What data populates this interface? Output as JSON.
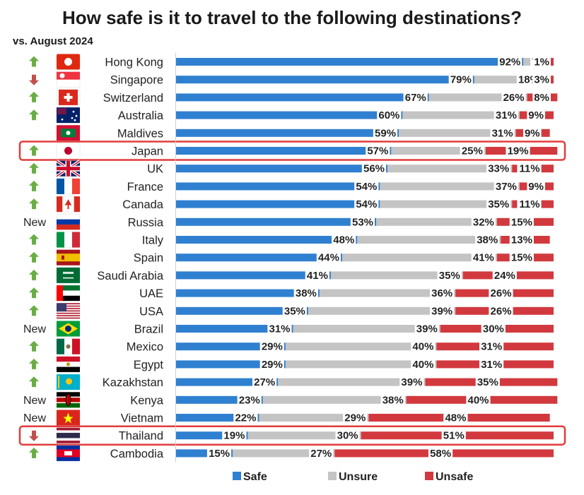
{
  "title": "How safe is it to travel to the following destinations?",
  "subtitle": "vs. August 2024",
  "colors": {
    "safe": "#2f80d0",
    "unsure": "#c4c4c4",
    "unsafe": "#d2393e",
    "highlight": "#e23b3b",
    "arrow_up": "#6aad45",
    "arrow_down": "#c0504d"
  },
  "chart_data": {
    "type": "bar",
    "orientation": "horizontal",
    "stacked": true,
    "percent": true,
    "categories": [
      "Hong Kong",
      "Singapore",
      "Switzerland",
      "Australia",
      "Maldives",
      "Japan",
      "UK",
      "France",
      "Canada",
      "Russia",
      "Italy",
      "Spain",
      "Saudi Arabia",
      "UAE",
      "USA",
      "Brazil",
      "Mexico",
      "Egypt",
      "Kazakhstan",
      "Kenya",
      "Vietnam",
      "Thailand",
      "Cambodia"
    ],
    "series": [
      {
        "name": "Safe",
        "values": [
          92,
          79,
          67,
          60,
          59,
          57,
          56,
          54,
          54,
          53,
          48,
          44,
          41,
          38,
          35,
          31,
          29,
          29,
          27,
          23,
          22,
          19,
          15
        ]
      },
      {
        "name": "Unsure",
        "values": [
          7,
          18,
          26,
          31,
          31,
          25,
          33,
          37,
          35,
          32,
          38,
          41,
          35,
          36,
          39,
          39,
          40,
          40,
          39,
          38,
          29,
          30,
          27
        ]
      },
      {
        "name": "Unsafe",
        "values": [
          1,
          3,
          8,
          9,
          9,
          19,
          11,
          9,
          11,
          15,
          13,
          15,
          24,
          26,
          26,
          30,
          31,
          31,
          35,
          40,
          48,
          51,
          58
        ]
      }
    ],
    "change_vs_august_2024": [
      "up",
      "down",
      "up",
      "up",
      "",
      "up",
      "up",
      "up",
      "up",
      "New",
      "up",
      "up",
      "up",
      "up",
      "up",
      "New",
      "up",
      "up",
      "up",
      "New",
      "New",
      "down",
      "up"
    ],
    "highlighted": [
      "Japan",
      "Thailand"
    ],
    "legend_position": "bottom"
  }
}
